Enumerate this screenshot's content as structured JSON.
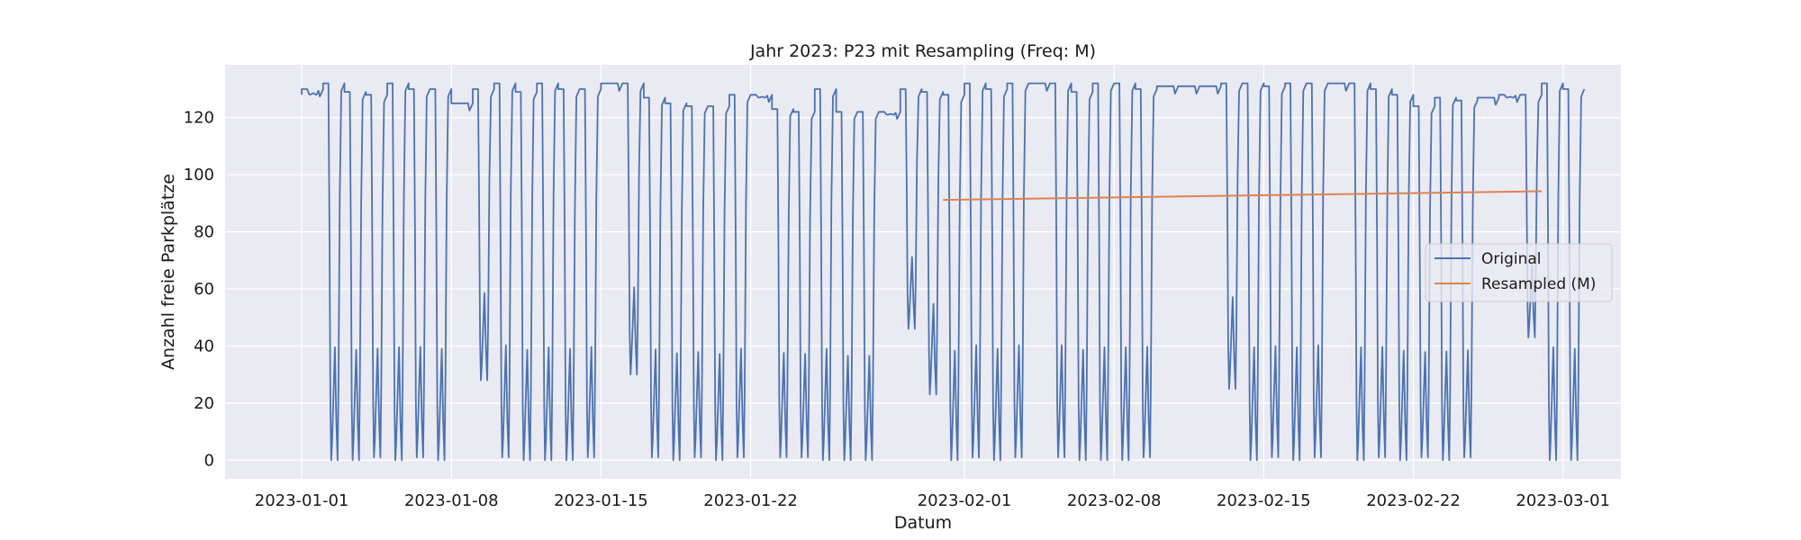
{
  "chart_data": {
    "type": "line",
    "title": "Jahr 2023: P23 mit Resampling (Freq: M)",
    "xlabel": "Datum",
    "ylabel": "Anzahl freie Parkplätze",
    "xlim": [
      "2022-12-28T10:00",
      "2023-03-03T17:00"
    ],
    "ylim": [
      -6.5,
      138.5
    ],
    "xticks": [
      "2023-01-01",
      "2023-01-08",
      "2023-01-15",
      "2023-01-22",
      "2023-02-01",
      "2023-02-08",
      "2023-02-15",
      "2023-02-22",
      "2023-03-01"
    ],
    "yticks": [
      0,
      20,
      40,
      60,
      80,
      100,
      120
    ],
    "grid": true,
    "legend_position": "center-right",
    "series": [
      {
        "name": "Original",
        "color": "#4c72b0",
        "x": [
          "2023-01-01",
          "2023-01-02",
          "2023-01-03",
          "2023-01-04",
          "2023-01-05",
          "2023-01-06",
          "2023-01-07",
          "2023-01-08",
          "2023-01-09",
          "2023-01-10",
          "2023-01-11",
          "2023-01-12",
          "2023-01-13",
          "2023-01-14",
          "2023-01-15",
          "2023-01-16",
          "2023-01-17",
          "2023-01-18",
          "2023-01-19",
          "2023-01-20",
          "2023-01-21",
          "2023-01-22",
          "2023-01-23",
          "2023-01-24",
          "2023-01-25",
          "2023-01-26",
          "2023-01-27",
          "2023-01-28",
          "2023-01-29",
          "2023-01-30",
          "2023-01-31",
          "2023-02-01",
          "2023-02-02",
          "2023-02-03",
          "2023-02-04",
          "2023-02-05",
          "2023-02-06",
          "2023-02-07",
          "2023-02-08",
          "2023-02-09",
          "2023-02-10",
          "2023-02-11",
          "2023-02-12",
          "2023-02-13",
          "2023-02-14",
          "2023-02-15",
          "2023-02-16",
          "2023-02-17",
          "2023-02-18",
          "2023-02-19",
          "2023-02-20",
          "2023-02-21",
          "2023-02-22",
          "2023-02-23",
          "2023-02-24",
          "2023-02-25",
          "2023-02-26",
          "2023-02-27",
          "2023-02-28",
          "2023-03-01"
        ],
        "daily_max": [
          130,
          132,
          129,
          128,
          132,
          130,
          130,
          125,
          130,
          132,
          129,
          132,
          130,
          130,
          132,
          132,
          127,
          125,
          124,
          124,
          128,
          128,
          123,
          122,
          130,
          122,
          122,
          122,
          130,
          129,
          128,
          132,
          130,
          132,
          132,
          132,
          129,
          132,
          132,
          130,
          131,
          131,
          131,
          132,
          132,
          131,
          132,
          132,
          132,
          132,
          130,
          128,
          124,
          127,
          126,
          127,
          128,
          128,
          132,
          130
        ],
        "daily_min": [
          128,
          0,
          0,
          1,
          0,
          1,
          0,
          125,
          28,
          1,
          0,
          0,
          0,
          1,
          132,
          30,
          1,
          0,
          1,
          0,
          1,
          127,
          1,
          1,
          0,
          0,
          0,
          121,
          46,
          23,
          0,
          1,
          0,
          1,
          132,
          1,
          0,
          0,
          0,
          1,
          131,
          131,
          131,
          25,
          0,
          1,
          0,
          1,
          132,
          0,
          1,
          0,
          1,
          0,
          1,
          127,
          127,
          43,
          0,
          0
        ]
      },
      {
        "name": "Resampled (M)",
        "color": "#dd8452",
        "x": [
          "2023-01-31",
          "2023-02-28"
        ],
        "values": [
          91.2,
          94.2
        ]
      }
    ]
  }
}
